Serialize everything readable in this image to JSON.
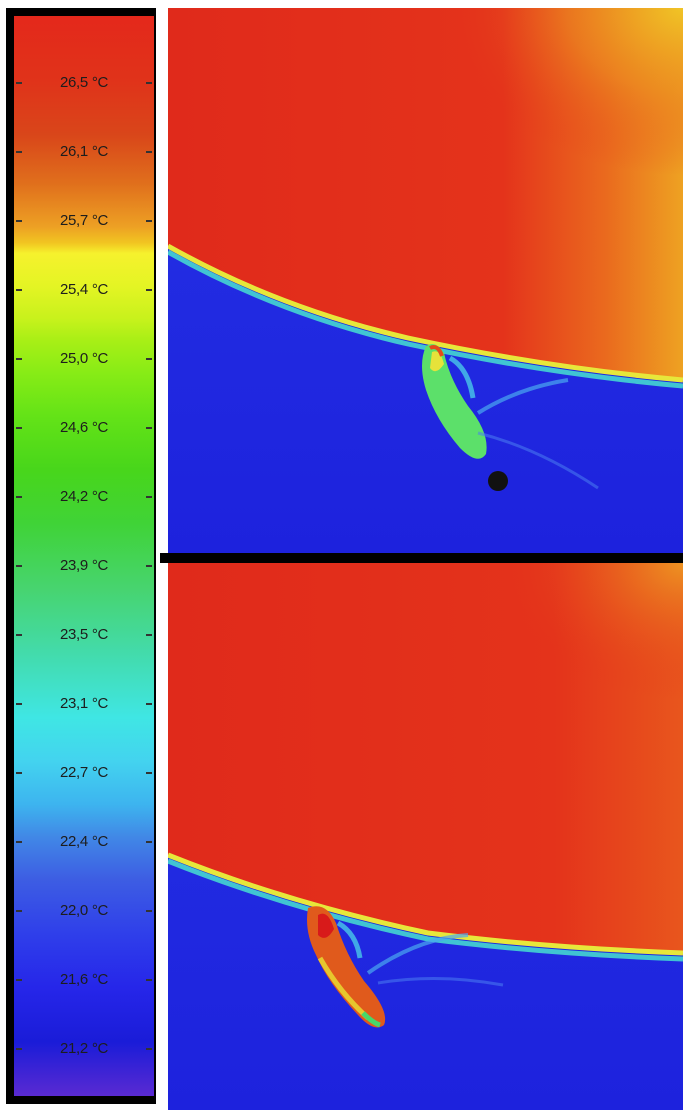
{
  "scale": {
    "labels": [
      "26,5 °C",
      "26,1 °C",
      "25,7 °C",
      "25,4 °C",
      "25,0 °C",
      "24,6 °C",
      "24,2 °C",
      "23,9 °C",
      "23,5 °C",
      "23,1 °C",
      "22,7 °C",
      "22,4 °C",
      "22,0 °C",
      "21,6 °C",
      "21,2 °C"
    ]
  },
  "colors": {
    "hot": "#e4281b",
    "warm": "#f6f22d",
    "mid": "#48d61b",
    "cool": "#3fe6e4",
    "cold": "#1c23e4"
  },
  "panels": [
    {
      "name": "upper-thermal-view"
    },
    {
      "name": "lower-thermal-view"
    }
  ]
}
